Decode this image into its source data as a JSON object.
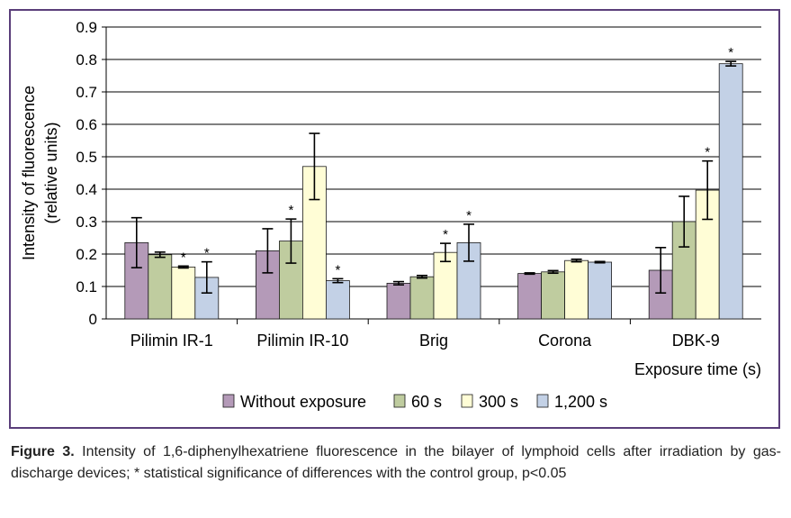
{
  "chart_data": {
    "type": "bar",
    "categories": [
      "Pilimin IR-1",
      "Pilimin IR-10",
      "Brig",
      "Corona",
      "DBK-9"
    ],
    "series": [
      {
        "name": "Without exposure",
        "values": [
          0.235,
          0.21,
          0.11,
          0.14,
          0.15
        ],
        "errors": [
          0.077,
          0.068,
          0.005,
          0.002,
          0.07
        ],
        "significant": [
          false,
          false,
          false,
          false,
          false
        ]
      },
      {
        "name": "60 s",
        "values": [
          0.198,
          0.24,
          0.13,
          0.145,
          0.3
        ],
        "errors": [
          0.008,
          0.068,
          0.004,
          0.004,
          0.078
        ],
        "significant": [
          false,
          true,
          false,
          false,
          false
        ]
      },
      {
        "name": "300 s",
        "values": [
          0.16,
          0.47,
          0.205,
          0.18,
          0.397
        ],
        "errors": [
          0.003,
          0.102,
          0.028,
          0.004,
          0.09
        ],
        "significant": [
          true,
          false,
          true,
          false,
          true
        ]
      },
      {
        "name": "1,200 s",
        "values": [
          0.128,
          0.118,
          0.235,
          0.175,
          0.787
        ],
        "errors": [
          0.048,
          0.006,
          0.057,
          0.002,
          0.007
        ],
        "significant": [
          true,
          true,
          true,
          false,
          true
        ]
      }
    ],
    "colors": [
      "#b49ab8",
      "#bfcc9f",
      "#fffdd6",
      "#c3d1e6"
    ],
    "edge_color": "#1a1a1a",
    "grid_color": "#000000",
    "ylabel": "Intensity of fluorescence\n(relative units)",
    "xlabel": "Exposure time (s)",
    "ylim": [
      0,
      0.9
    ],
    "yticks": [
      "0",
      "0.1",
      "0.2",
      "0.3",
      "0.4",
      "0.5",
      "0.6",
      "0.7",
      "0.8",
      "0.9"
    ],
    "ytick_values": [
      0,
      0.1,
      0.2,
      0.3,
      0.4,
      0.5,
      0.6,
      0.7,
      0.8,
      0.9
    ],
    "significance_marker": "*",
    "grid": true,
    "legend_position": "bottom"
  },
  "caption": {
    "label": "Figure 3.",
    "text": "Intensity of 1,6-diphenylhexatriene fluorescence in the bilayer of lymphoid cells after irradiation by gas-discharge devices; * statistical significance of differences with the control group, p<0.05"
  }
}
